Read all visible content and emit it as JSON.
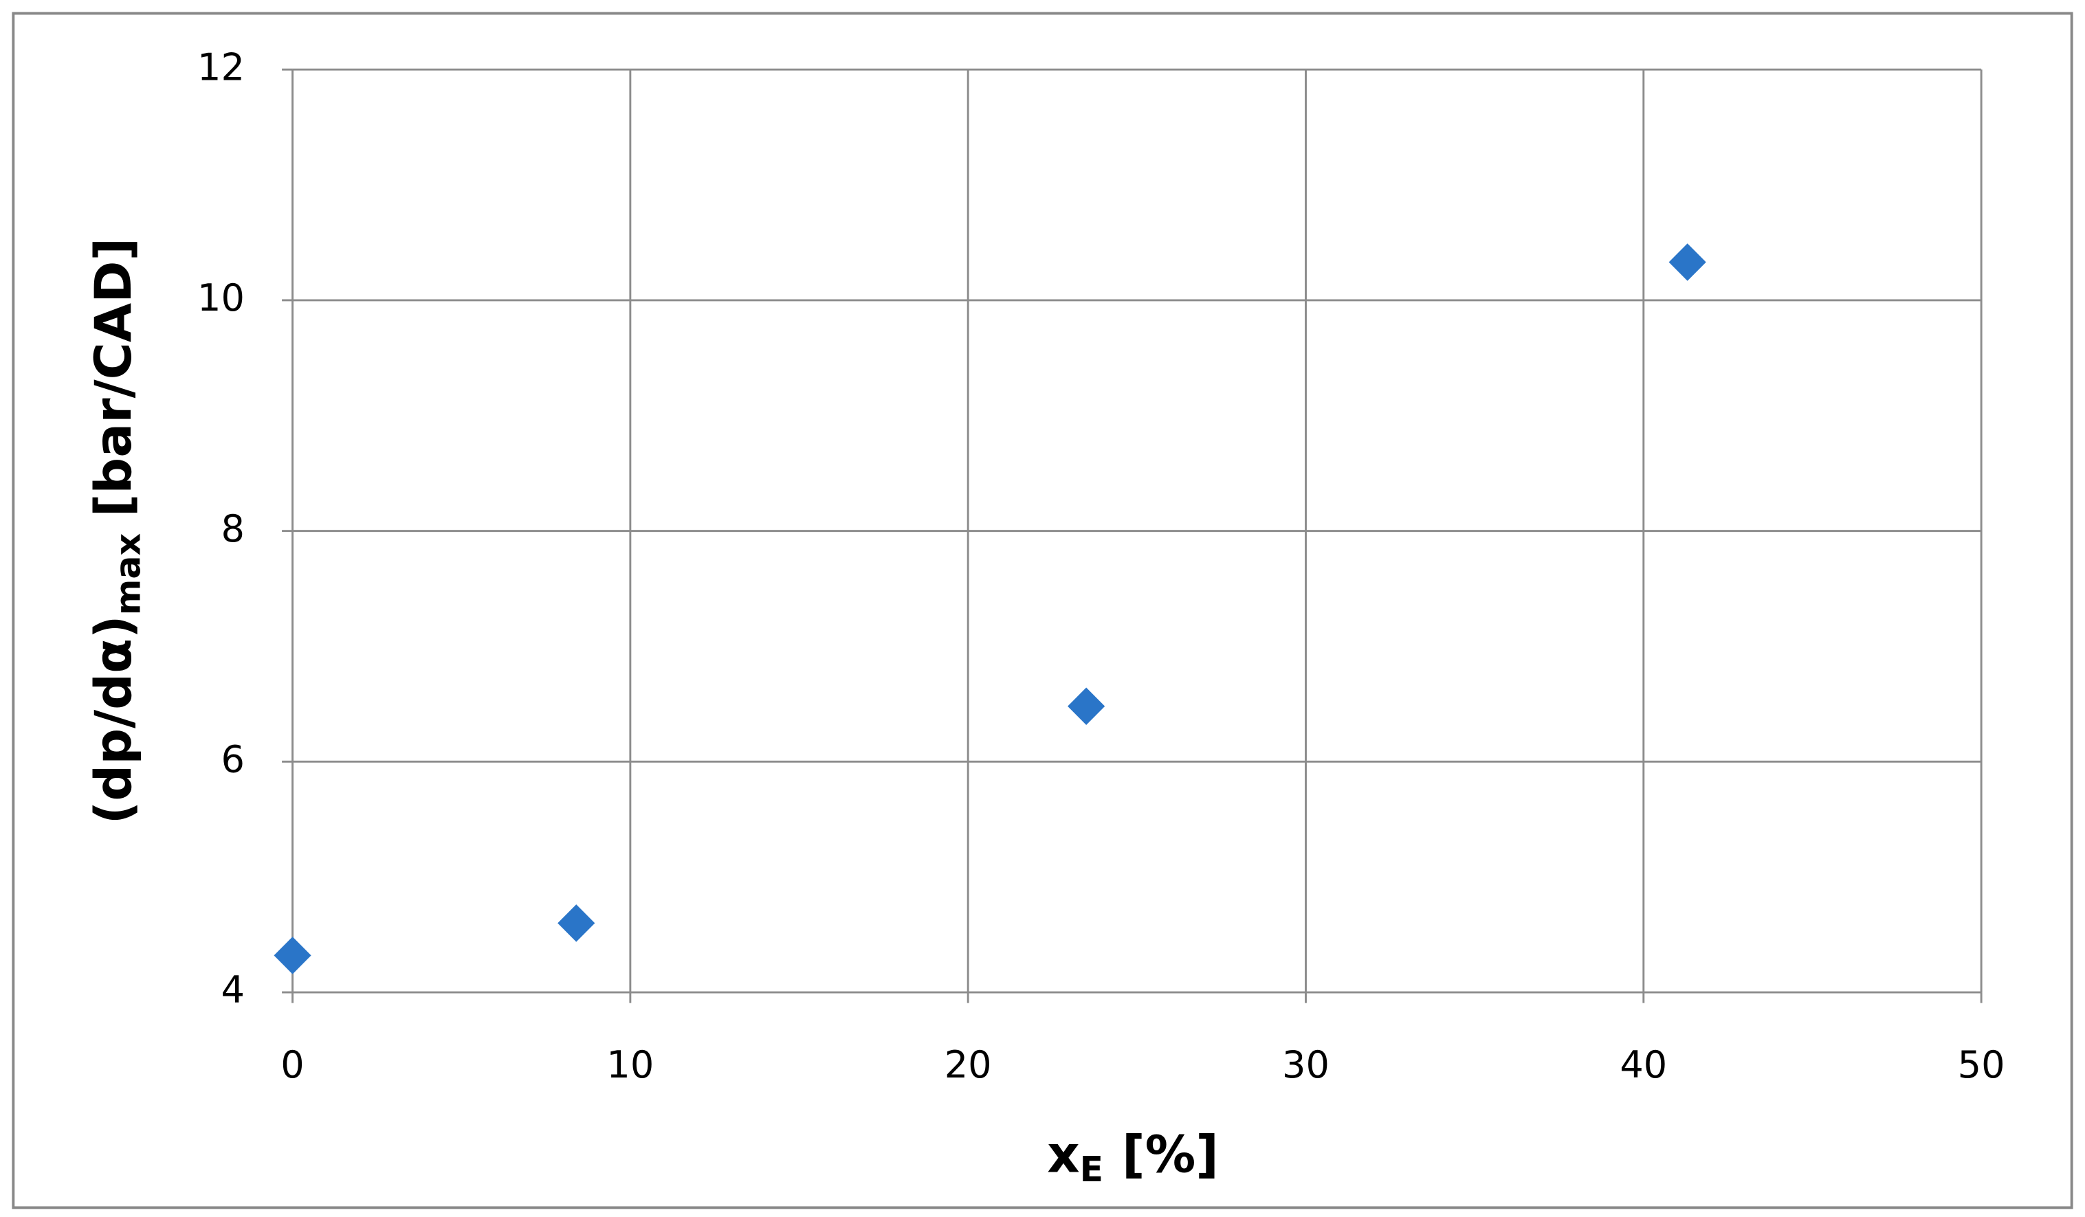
{
  "chart_data": {
    "type": "scatter",
    "xlabel": [
      "x",
      "E",
      "[%]"
    ],
    "ylabel": [
      "(dp/dα)",
      "max",
      "[bar/CAD]"
    ],
    "series": [
      {
        "color": "#2a75c8",
        "x": [
          0,
          8.4,
          23.5,
          41.3
        ],
        "values": [
          4.32,
          4.6,
          6.48,
          10.33
        ]
      }
    ],
    "xlim": [
      0,
      50
    ],
    "xticks": [
      0,
      10,
      20,
      30,
      40,
      50
    ],
    "ylim": [
      4,
      12
    ],
    "yticks": [
      4,
      6,
      8,
      10,
      12
    ],
    "grid": true
  }
}
